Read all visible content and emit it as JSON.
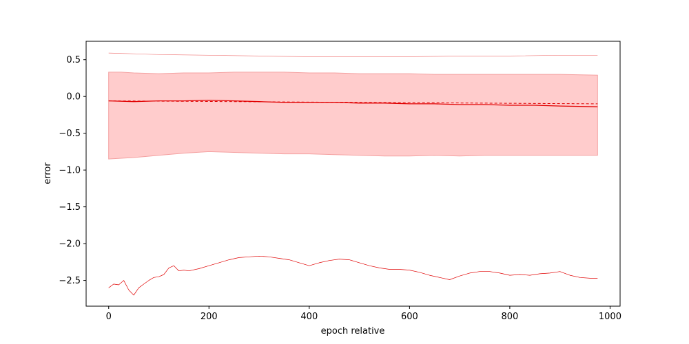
{
  "chart_data": {
    "type": "line",
    "title": "",
    "xlabel": "epoch relative",
    "ylabel": "error",
    "xlim": [
      -45,
      1020
    ],
    "ylim": [
      -2.85,
      0.75
    ],
    "xticks": [
      0,
      200,
      400,
      600,
      800,
      1000
    ],
    "xtick_labels": [
      "0",
      "200",
      "400",
      "600",
      "800",
      "1000"
    ],
    "yticks": [
      -2.5,
      -2.0,
      -1.5,
      -1.0,
      -0.5,
      0.0,
      0.5
    ],
    "ytick_labels": [
      "−2.5",
      "−2.0",
      "−1.5",
      "−1.0",
      "−0.5",
      "0.0",
      "0.5"
    ],
    "grid": false,
    "legend": "none",
    "colors": {
      "main": "#e00000",
      "band_fill": "#ffcccc",
      "band_edge": "#f4a0a0",
      "max_line": "#f08080",
      "min_line": "#e00000"
    },
    "band": {
      "x": [
        0,
        25,
        50,
        100,
        150,
        200,
        250,
        300,
        350,
        400,
        450,
        500,
        550,
        600,
        650,
        700,
        750,
        800,
        850,
        900,
        975
      ],
      "upper": [
        0.33,
        0.33,
        0.32,
        0.31,
        0.32,
        0.32,
        0.33,
        0.33,
        0.33,
        0.32,
        0.32,
        0.31,
        0.31,
        0.31,
        0.3,
        0.3,
        0.3,
        0.3,
        0.3,
        0.3,
        0.29
      ],
      "lower": [
        -0.85,
        -0.84,
        -0.83,
        -0.8,
        -0.77,
        -0.75,
        -0.76,
        -0.77,
        -0.78,
        -0.78,
        -0.79,
        -0.8,
        -0.81,
        -0.81,
        -0.8,
        -0.81,
        -0.8,
        -0.8,
        -0.8,
        -0.8,
        -0.8
      ]
    },
    "series": [
      {
        "role": "mean",
        "style": "solid",
        "x": [
          0,
          50,
          100,
          150,
          200,
          250,
          300,
          350,
          400,
          450,
          500,
          550,
          600,
          650,
          700,
          750,
          800,
          850,
          900,
          975
        ],
        "values": [
          -0.06,
          -0.07,
          -0.06,
          -0.06,
          -0.05,
          -0.06,
          -0.07,
          -0.08,
          -0.08,
          -0.08,
          -0.09,
          -0.09,
          -0.1,
          -0.1,
          -0.11,
          -0.11,
          -0.12,
          -0.12,
          -0.13,
          -0.14
        ]
      },
      {
        "role": "trend",
        "style": "dashed",
        "x": [
          0,
          975
        ],
        "values": [
          -0.06,
          -0.1
        ]
      },
      {
        "role": "max",
        "style": "solid",
        "x": [
          0,
          50,
          100,
          200,
          300,
          400,
          500,
          600,
          700,
          800,
          900,
          975
        ],
        "values": [
          0.59,
          0.58,
          0.57,
          0.56,
          0.55,
          0.54,
          0.54,
          0.54,
          0.55,
          0.55,
          0.56,
          0.56
        ]
      },
      {
        "role": "min",
        "style": "solid",
        "x": [
          0,
          10,
          20,
          30,
          40,
          50,
          60,
          70,
          80,
          90,
          100,
          110,
          120,
          130,
          140,
          150,
          160,
          180,
          200,
          220,
          240,
          260,
          280,
          300,
          320,
          340,
          360,
          380,
          400,
          420,
          440,
          460,
          480,
          500,
          520,
          540,
          560,
          580,
          600,
          620,
          640,
          660,
          680,
          700,
          720,
          740,
          760,
          780,
          800,
          820,
          840,
          860,
          880,
          900,
          920,
          940,
          960,
          975
        ],
        "values": [
          -2.6,
          -2.55,
          -2.56,
          -2.5,
          -2.63,
          -2.7,
          -2.6,
          -2.55,
          -2.5,
          -2.46,
          -2.45,
          -2.42,
          -2.33,
          -2.3,
          -2.37,
          -2.36,
          -2.37,
          -2.34,
          -2.3,
          -2.26,
          -2.22,
          -2.19,
          -2.18,
          -2.17,
          -2.18,
          -2.2,
          -2.22,
          -2.26,
          -2.3,
          -2.26,
          -2.23,
          -2.21,
          -2.22,
          -2.26,
          -2.3,
          -2.33,
          -2.35,
          -2.35,
          -2.36,
          -2.39,
          -2.43,
          -2.46,
          -2.49,
          -2.44,
          -2.4,
          -2.38,
          -2.38,
          -2.4,
          -2.43,
          -2.42,
          -2.43,
          -2.41,
          -2.4,
          -2.38,
          -2.43,
          -2.46,
          -2.47,
          -2.47
        ]
      }
    ]
  }
}
